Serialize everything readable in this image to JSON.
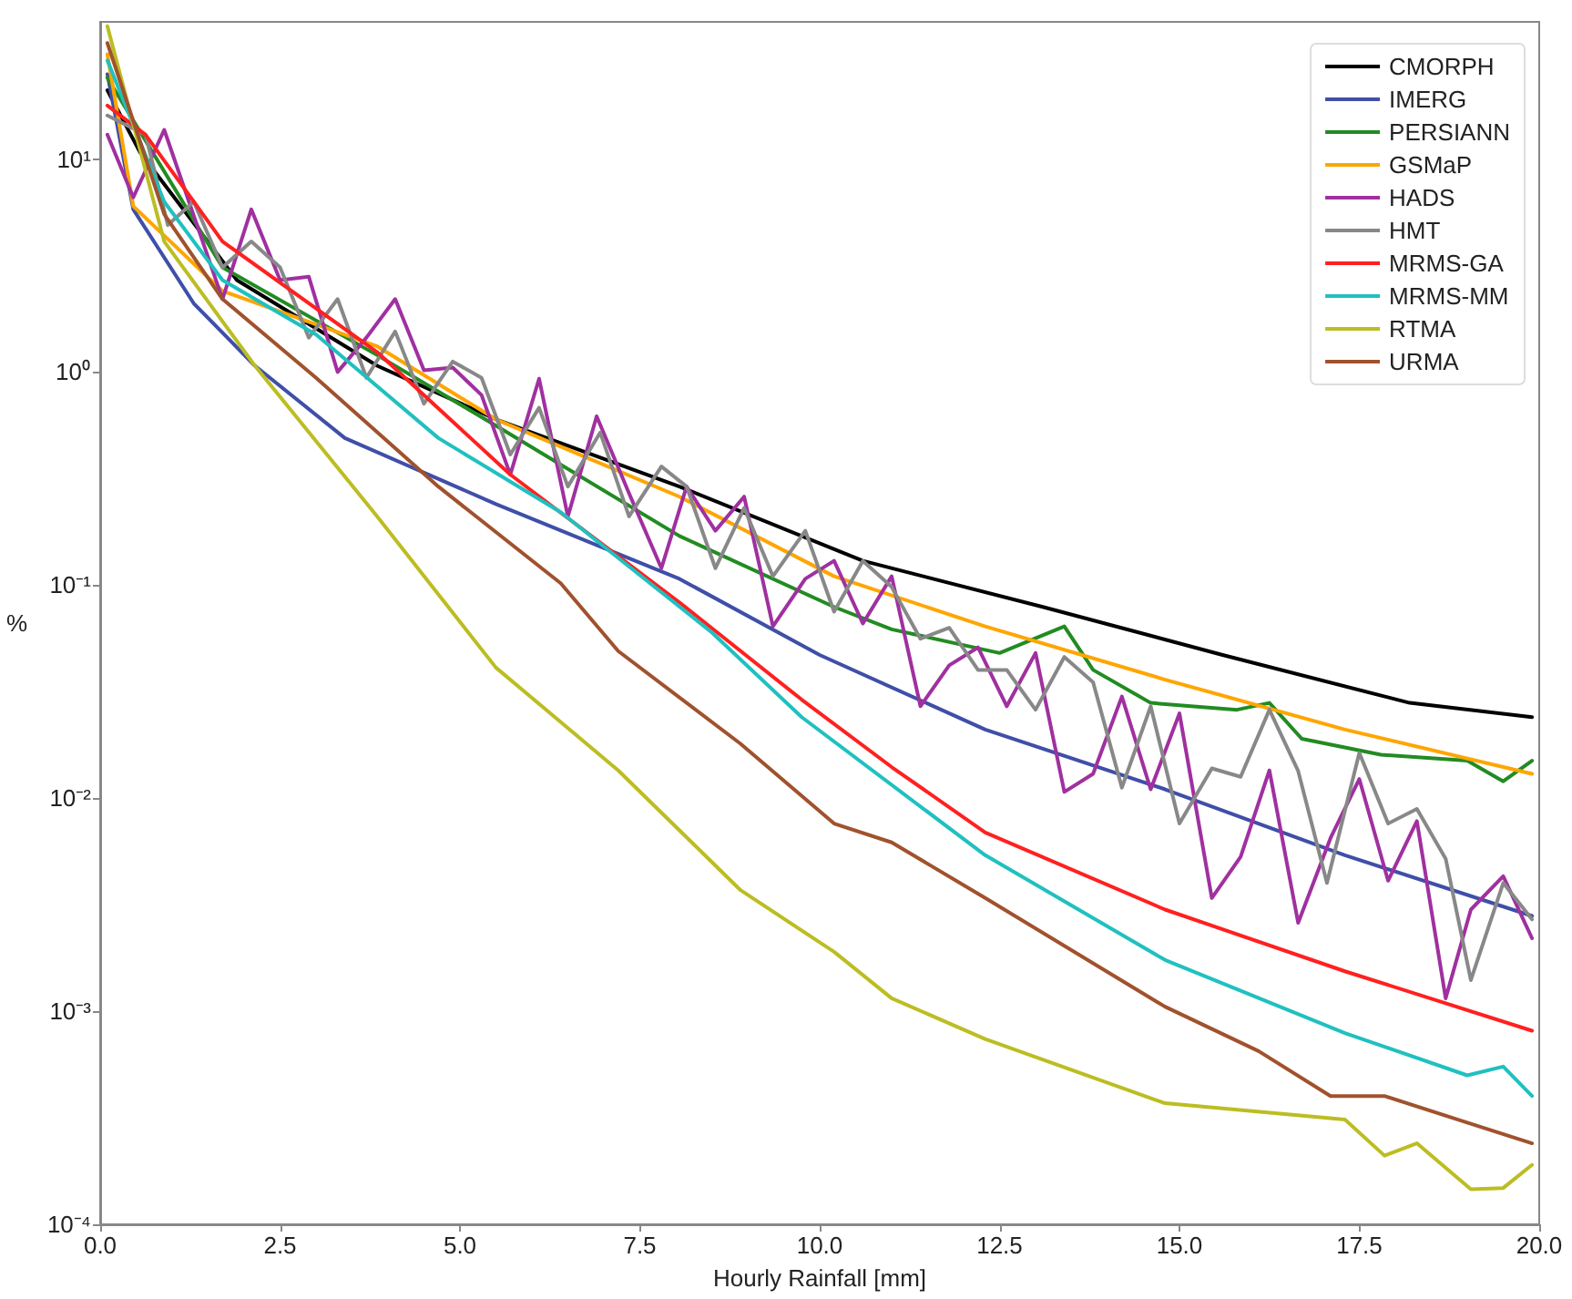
{
  "chart_data": {
    "type": "line",
    "xlabel": "Hourly Rainfall [mm]",
    "ylabel": "%",
    "log": "y",
    "grid": false,
    "legend": "top right",
    "marker": "none",
    "line_style": "solid",
    "xlim": [
      0,
      20
    ],
    "xticks": [
      {
        "value": 0,
        "label": "0.0"
      },
      2.5,
      {
        "value": 5,
        "label": "5.0"
      },
      7.5,
      {
        "value": 10,
        "label": "10.0"
      },
      12.5,
      {
        "value": 15,
        "label": "15.0"
      },
      17.5,
      {
        "value": 20,
        "label": "20.0"
      }
    ],
    "ylim": [
      0.0001,
      44
    ],
    "yticks": [
      {
        "value": 0.0001,
        "label": "10⁻⁴"
      },
      {
        "value": 0.001,
        "label": "10⁻³"
      },
      {
        "value": 0.01,
        "label": "10⁻²"
      },
      {
        "value": 0.1,
        "label": "10⁻¹"
      },
      {
        "value": 1,
        "label": "10⁰"
      },
      {
        "value": 10,
        "label": "10¹"
      }
    ],
    "series": [
      {
        "name": "CMORPH",
        "color": "#000000",
        "x": [
          0.1,
          0.55,
          1.9,
          3.85,
          5.5,
          8.05,
          10.6,
          13.1,
          15.6,
          18.2,
          19.9
        ],
        "values": [
          21,
          10.8,
          2.7,
          1.07,
          0.6,
          0.29,
          0.13,
          0.079,
          0.047,
          0.028,
          0.024
        ]
      },
      {
        "name": "IMERG",
        "color": "#3f4fa8",
        "x": [
          0.1,
          0.46,
          1.3,
          2.15,
          3.4,
          5.5,
          8.05,
          10,
          12.3,
          14.8,
          17.3,
          19.9
        ],
        "values": [
          25,
          5.8,
          2.1,
          1.07,
          0.49,
          0.24,
          0.107,
          0.047,
          0.021,
          0.011,
          0.0054,
          0.0028
        ]
      },
      {
        "name": "PERSIANN",
        "color": "#228b22",
        "x": [
          0.1,
          1.7,
          3.85,
          5.5,
          8.05,
          10.2,
          11,
          12.5,
          13.4,
          13.8,
          14.6,
          15.8,
          16.25,
          16.7,
          17.8,
          19,
          19.5,
          19.9
        ],
        "values": [
          24,
          3.1,
          1.2,
          0.56,
          0.17,
          0.079,
          0.062,
          0.048,
          0.064,
          0.04,
          0.028,
          0.026,
          0.028,
          0.019,
          0.016,
          0.015,
          0.012,
          0.015
        ]
      },
      {
        "name": "GSMaP",
        "color": "#ffa500",
        "x": [
          0.1,
          0.46,
          1.7,
          3.85,
          5.5,
          8.05,
          10.2,
          12.3,
          14.8,
          17.3,
          19.9
        ],
        "values": [
          31,
          6,
          2.4,
          1.32,
          0.6,
          0.26,
          0.11,
          0.064,
          0.036,
          0.021,
          0.013
        ]
      },
      {
        "name": "HADS",
        "color": "#a030a0",
        "x": [
          0.1,
          0.46,
          0.89,
          1.7,
          2.1,
          2.5,
          2.9,
          3.3,
          3.7,
          4.1,
          4.5,
          4.9,
          5.3,
          5.7,
          6.1,
          6.5,
          6.9,
          7.35,
          7.8,
          8.15,
          8.55,
          8.95,
          9.35,
          9.8,
          10.2,
          10.6,
          11,
          11.4,
          11.8,
          12.2,
          12.6,
          13,
          13.4,
          13.8,
          14.2,
          14.6,
          15,
          15.45,
          15.85,
          16.25,
          16.65,
          17.1,
          17.5,
          17.9,
          18.3,
          18.7,
          19.05,
          19.5,
          19.9
        ],
        "values": [
          13,
          6.6,
          13.7,
          2.2,
          5.8,
          2.7,
          2.8,
          1,
          1.45,
          2.2,
          1.02,
          1.05,
          0.78,
          0.33,
          0.93,
          0.21,
          0.62,
          0.27,
          0.12,
          0.29,
          0.18,
          0.26,
          0.064,
          0.107,
          0.13,
          0.066,
          0.11,
          0.027,
          0.042,
          0.051,
          0.027,
          0.048,
          0.0107,
          0.013,
          0.03,
          0.011,
          0.025,
          0.0034,
          0.0053,
          0.0135,
          0.0026,
          0.0065,
          0.0123,
          0.0041,
          0.0078,
          0.00115,
          0.003,
          0.0043,
          0.0022
        ]
      },
      {
        "name": "HMT",
        "color": "#888888",
        "x": [
          0.1,
          0.63,
          0.94,
          1.3,
          1.7,
          2.1,
          2.5,
          2.9,
          3.3,
          3.7,
          4.1,
          4.5,
          4.9,
          5.3,
          5.7,
          6.1,
          6.5,
          6.95,
          7.35,
          7.8,
          8.15,
          8.55,
          8.95,
          9.35,
          9.8,
          10.2,
          10.6,
          11,
          11.4,
          11.8,
          12.2,
          12.6,
          13,
          13.4,
          13.8,
          14.2,
          14.6,
          15,
          15.45,
          15.85,
          16.25,
          16.65,
          17.05,
          17.5,
          17.9,
          18.3,
          18.7,
          19.05,
          19.5,
          19.9
        ],
        "values": [
          16,
          13,
          4.9,
          6.3,
          3.1,
          4.1,
          3.1,
          1.45,
          2.2,
          0.94,
          1.55,
          0.71,
          1.12,
          0.94,
          0.41,
          0.68,
          0.29,
          0.52,
          0.21,
          0.36,
          0.29,
          0.12,
          0.23,
          0.11,
          0.18,
          0.075,
          0.13,
          0.098,
          0.056,
          0.063,
          0.04,
          0.04,
          0.026,
          0.046,
          0.035,
          0.0112,
          0.027,
          0.0076,
          0.0138,
          0.0126,
          0.026,
          0.0134,
          0.004,
          0.0163,
          0.0076,
          0.0089,
          0.0052,
          0.0014,
          0.004,
          0.0027
        ]
      },
      {
        "name": "MRMS-GA",
        "color": "#ff2020",
        "x": [
          0.1,
          0.63,
          1.7,
          3.85,
          5.7,
          8.05,
          9.75,
          11,
          12.3,
          14.8,
          17.3,
          19.9
        ],
        "values": [
          17.8,
          13,
          4.1,
          1.24,
          0.33,
          0.083,
          0.029,
          0.014,
          0.0069,
          0.003,
          0.00154,
          0.00081
        ]
      },
      {
        "name": "MRMS-MM",
        "color": "#20c0c0",
        "x": [
          0.1,
          0.89,
          1.7,
          3,
          4.7,
          6.4,
          8.5,
          9.75,
          12.3,
          14.8,
          17.3,
          19,
          19.5,
          19.9
        ],
        "values": [
          29,
          6.3,
          2.7,
          1.5,
          0.49,
          0.22,
          0.06,
          0.024,
          0.0054,
          0.00174,
          0.00079,
          0.0005,
          0.00055,
          0.0004
        ]
      },
      {
        "name": "RTMA",
        "color": "#bcbd22",
        "x": [
          0.1,
          0.89,
          2.15,
          3.85,
          5.5,
          7.2,
          8.9,
          10.2,
          11,
          12.3,
          14.8,
          17.3,
          17.85,
          18.3,
          19.05,
          19.5,
          19.9
        ],
        "values": [
          42,
          4.1,
          1.07,
          0.21,
          0.041,
          0.0135,
          0.0037,
          0.0019,
          0.00115,
          0.00074,
          0.00037,
          0.00031,
          0.00021,
          0.00024,
          0.000146,
          0.000148,
          0.00019
        ]
      },
      {
        "name": "URMA",
        "color": "#a0522d",
        "x": [
          0.1,
          0.89,
          1.7,
          3,
          4.7,
          6.4,
          7.2,
          8.9,
          10.2,
          11,
          12.3,
          14.8,
          16.1,
          17.1,
          17.85,
          19,
          19.9
        ],
        "values": [
          35,
          5.5,
          2.2,
          0.94,
          0.29,
          0.102,
          0.049,
          0.018,
          0.0076,
          0.0062,
          0.0034,
          0.00105,
          0.00065,
          0.0004,
          0.0004,
          0.0003,
          0.00024
        ]
      }
    ]
  }
}
